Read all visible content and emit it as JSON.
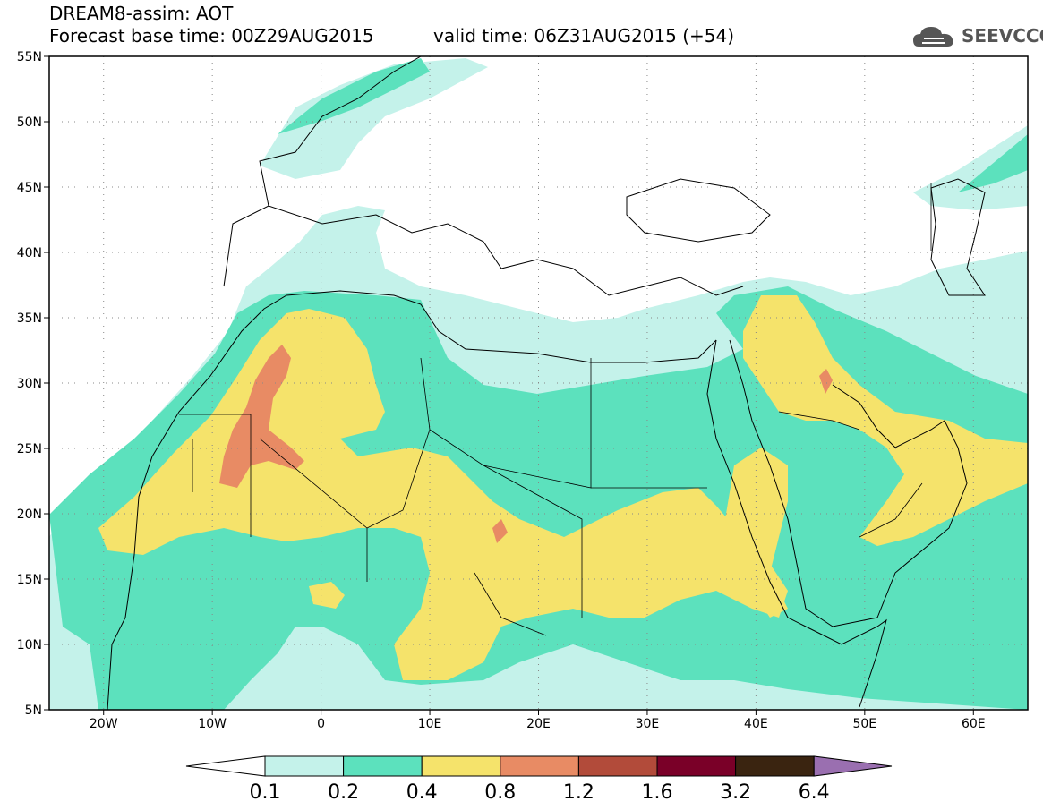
{
  "header": {
    "title_line1": "DREAM8-assim: AOT",
    "title_line2": "Forecast base time: 00Z29AUG2015",
    "valid_time": "valid time: 06Z31AUG2015 (+54)",
    "logo_text": "SEEVCCC"
  },
  "map": {
    "lon_range": [
      -25,
      65
    ],
    "lat_range": [
      5,
      55
    ],
    "lat_labels": [
      "55N",
      "50N",
      "45N",
      "40N",
      "35N",
      "30N",
      "25N",
      "20N",
      "15N",
      "10N",
      "5N"
    ],
    "lon_labels": [
      "20W",
      "10W",
      "0",
      "10E",
      "20E",
      "30E",
      "40E",
      "50E",
      "60E"
    ],
    "grid": "dotted"
  },
  "colorbar": {
    "labels": [
      "0.1",
      "0.2",
      "0.4",
      "0.8",
      "1.2",
      "1.6",
      "3.2",
      "6.4"
    ],
    "colors": [
      "#ffffff",
      "#c4f2ea",
      "#5ce1bd",
      "#f5e36b",
      "#e88b64",
      "#b24b3a",
      "#7a0028",
      "#3a2410",
      "#9a6fb0"
    ]
  }
}
